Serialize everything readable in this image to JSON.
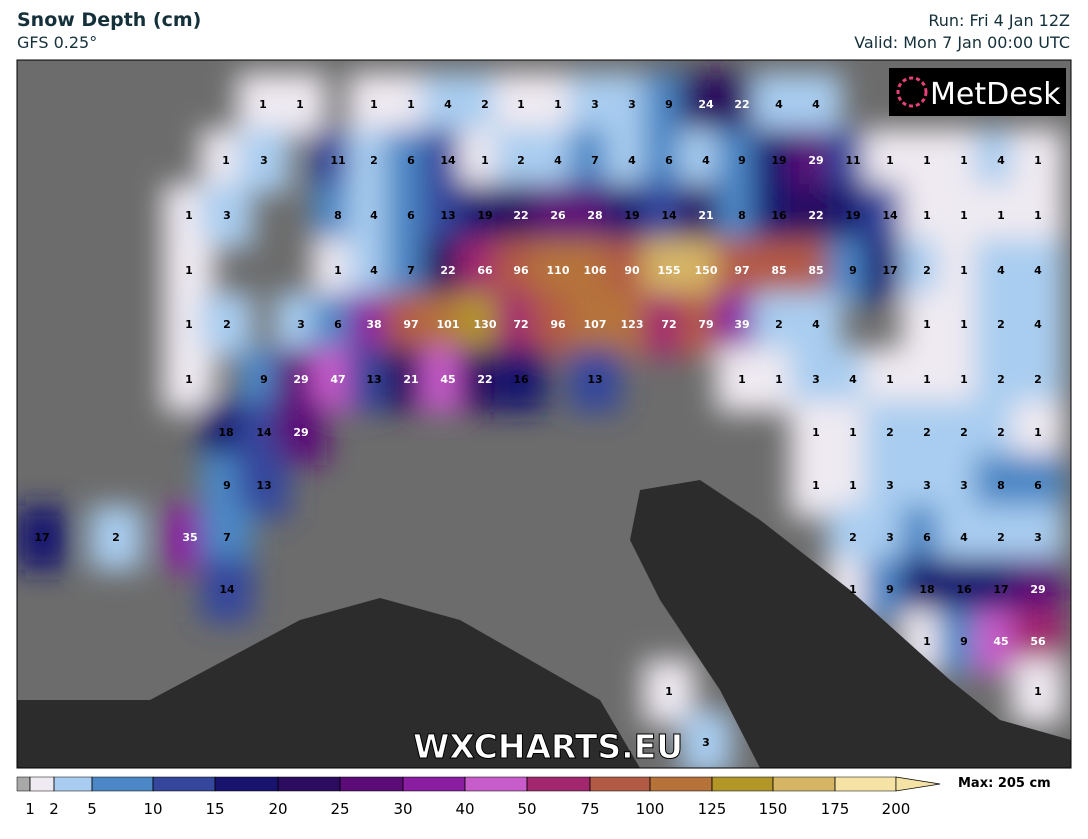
{
  "header": {
    "title": "Snow Depth (cm)",
    "model": "GFS 0.25°",
    "run": "Run: Fri 4 Jan 12Z",
    "valid": "Valid: Mon 7 Jan 00:00 UTC"
  },
  "logo": "MetDesk",
  "watermark": "WXCHARTS.EU",
  "map": {
    "rows": [
      [
        1,
        1,
        1,
        1,
        4,
        2,
        1,
        1,
        3,
        3,
        9,
        24,
        22,
        4,
        4
      ],
      [
        1,
        3,
        11,
        2,
        6,
        14,
        1,
        2,
        4,
        7,
        4,
        6,
        4,
        9,
        19,
        29,
        11,
        1,
        1,
        1,
        4,
        1
      ],
      [
        1,
        3,
        8,
        4,
        6,
        13,
        19,
        22,
        26,
        28,
        19,
        14,
        21,
        8,
        16,
        22,
        19,
        14,
        1,
        1,
        1,
        1
      ],
      [
        1,
        1,
        4,
        7,
        22,
        66,
        96,
        110,
        106,
        90,
        155,
        150,
        97,
        85,
        85,
        9,
        17,
        2,
        1,
        4,
        4
      ],
      [
        1,
        2,
        3,
        6,
        38,
        97,
        101,
        130,
        72,
        96,
        107,
        123,
        72,
        79,
        39,
        2,
        4,
        1,
        1,
        2,
        4
      ],
      [
        1,
        9,
        29,
        47,
        13,
        21,
        45,
        22,
        16,
        13,
        1,
        1,
        3,
        4,
        1,
        1,
        1,
        2,
        2
      ],
      [
        18,
        14,
        29,
        1,
        1,
        2,
        2,
        2,
        2,
        1
      ],
      [
        9,
        13,
        1,
        1,
        3,
        3,
        3,
        8,
        6
      ],
      [
        17,
        2,
        35,
        7,
        2,
        3,
        6,
        4,
        2,
        3
      ],
      [
        14,
        1,
        9,
        18,
        16,
        17,
        29
      ],
      [
        1,
        9,
        45,
        56
      ],
      [
        1,
        1
      ],
      [
        3
      ]
    ]
  },
  "colorbar": {
    "ticks": [
      1,
      2,
      5,
      10,
      15,
      20,
      25,
      30,
      40,
      50,
      75,
      100,
      125,
      150,
      175,
      200
    ],
    "colors": [
      "#a8a8a8",
      "#efeaf1",
      "#a9cdf0",
      "#4b87c5",
      "#34479c",
      "#17136f",
      "#2b0c5e",
      "#5c0c77",
      "#8b1da3",
      "#c85ccb",
      "#a3276f",
      "#b35a44",
      "#b5733a",
      "#b39628",
      "#d6b565",
      "#f5e3a6"
    ],
    "max_label": "Max: 205 cm"
  }
}
